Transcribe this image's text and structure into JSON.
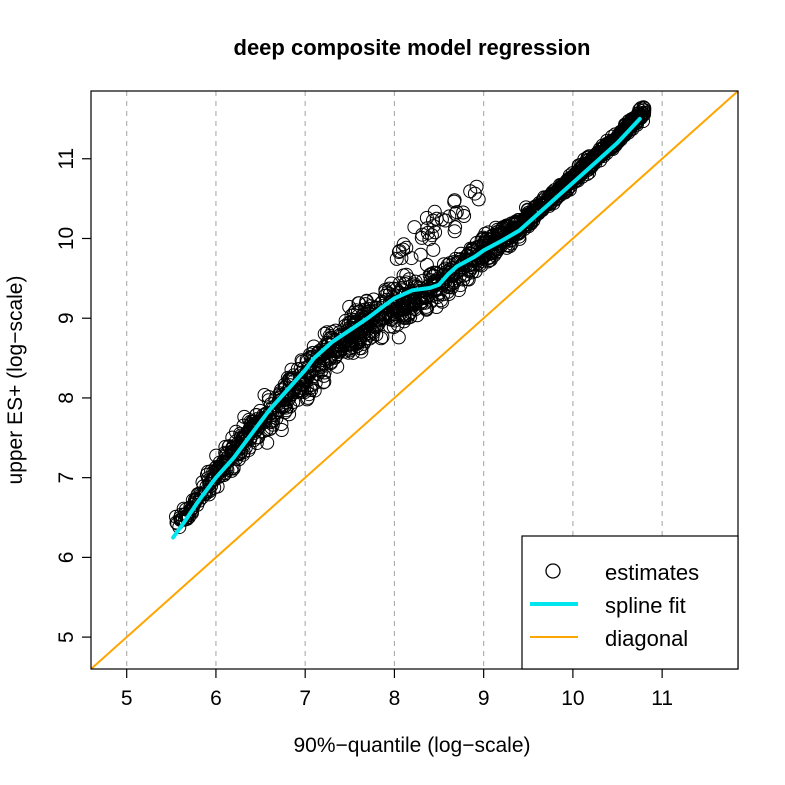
{
  "chart_data": {
    "type": "scatter",
    "title": "deep composite model regression",
    "xlabel": "90%−quantile (log−scale)",
    "ylabel": "upper ES+ (log−scale)",
    "xlim": [
      4.6,
      11.85
    ],
    "ylim": [
      4.6,
      11.85
    ],
    "x_ticks": [
      5,
      6,
      7,
      8,
      9,
      10,
      11
    ],
    "y_ticks": [
      5,
      6,
      7,
      8,
      9,
      10,
      11
    ],
    "x_tick_labels": [
      "5",
      "6",
      "7",
      "8",
      "9",
      "10",
      "11"
    ],
    "y_tick_labels": [
      "5",
      "6",
      "7",
      "8",
      "9",
      "10",
      "11"
    ],
    "vertical_grid": true,
    "legend_position": "bottom-right",
    "series": [
      {
        "name": "estimates",
        "kind": "points",
        "color": "#000000",
        "band_center": [
          [
            5.55,
            6.4
          ],
          [
            5.8,
            6.75
          ],
          [
            6.0,
            7.05
          ],
          [
            6.3,
            7.45
          ],
          [
            6.6,
            7.8
          ],
          [
            6.9,
            8.15
          ],
          [
            7.1,
            8.4
          ],
          [
            7.4,
            8.7
          ],
          [
            7.7,
            8.95
          ],
          [
            8.0,
            9.15
          ],
          [
            8.3,
            9.3
          ],
          [
            8.5,
            9.4
          ],
          [
            8.7,
            9.6
          ],
          [
            9.0,
            9.85
          ],
          [
            9.3,
            10.05
          ],
          [
            9.6,
            10.35
          ],
          [
            9.9,
            10.65
          ],
          [
            10.2,
            10.95
          ],
          [
            10.5,
            11.25
          ],
          [
            10.8,
            11.6
          ]
        ]
      },
      {
        "name": "spline fit",
        "kind": "line",
        "color": "#00e5ee",
        "points": [
          [
            5.52,
            6.25
          ],
          [
            5.65,
            6.45
          ],
          [
            5.8,
            6.7
          ],
          [
            6.0,
            7.0
          ],
          [
            6.2,
            7.25
          ],
          [
            6.4,
            7.55
          ],
          [
            6.6,
            7.85
          ],
          [
            6.8,
            8.1
          ],
          [
            7.0,
            8.35
          ],
          [
            7.1,
            8.5
          ],
          [
            7.3,
            8.7
          ],
          [
            7.5,
            8.85
          ],
          [
            7.7,
            9.0
          ],
          [
            7.9,
            9.17
          ],
          [
            8.0,
            9.25
          ],
          [
            8.2,
            9.35
          ],
          [
            8.4,
            9.38
          ],
          [
            8.5,
            9.42
          ],
          [
            8.6,
            9.55
          ],
          [
            8.7,
            9.65
          ],
          [
            8.9,
            9.77
          ],
          [
            9.0,
            9.85
          ],
          [
            9.2,
            9.97
          ],
          [
            9.4,
            10.1
          ],
          [
            9.6,
            10.3
          ],
          [
            9.8,
            10.5
          ],
          [
            10.0,
            10.7
          ],
          [
            10.2,
            10.9
          ],
          [
            10.5,
            11.2
          ],
          [
            10.75,
            11.5
          ]
        ]
      },
      {
        "name": "diagonal",
        "kind": "line",
        "color": "#ffa500",
        "points": [
          [
            4.6,
            4.6
          ],
          [
            11.85,
            11.85
          ]
        ]
      }
    ]
  }
}
